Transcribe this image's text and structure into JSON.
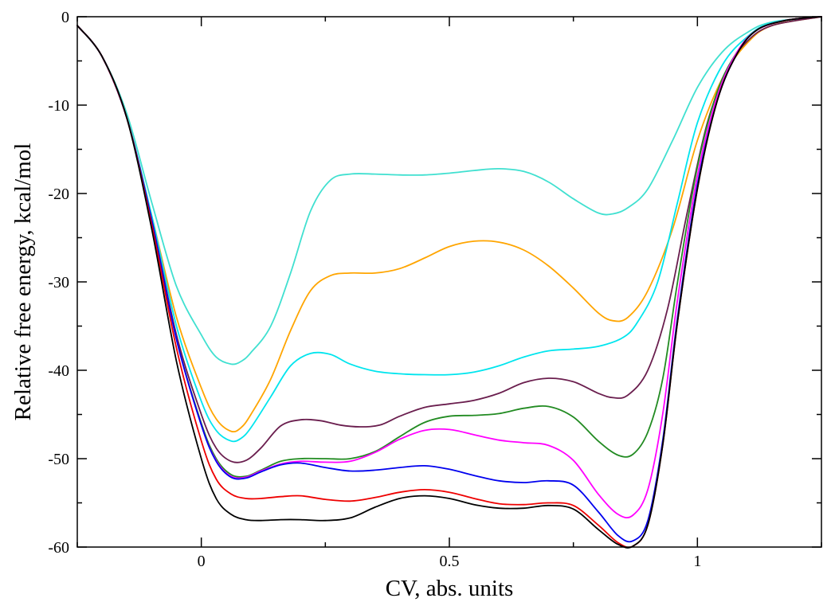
{
  "chart_data": {
    "type": "line",
    "title": "",
    "xlabel": "CV, abs. units",
    "ylabel": "Relative free energy, kcal/mol",
    "xlim": [
      -0.25,
      1.25
    ],
    "ylim": [
      -60,
      0
    ],
    "xticks": [
      0,
      0.5,
      1
    ],
    "xtick_labels": [
      "0",
      "0.5",
      "1"
    ],
    "yticks": [
      0,
      -10,
      -20,
      -30,
      -40,
      -50,
      -60
    ],
    "ytick_labels": [
      "0",
      "-10",
      "-20",
      "-30",
      "-40",
      "-50",
      "-60"
    ],
    "grid": false,
    "legend": "none",
    "series": [
      {
        "color": "#40e0d0",
        "points": [
          [
            -0.25,
            -1
          ],
          [
            -0.2,
            -4.5
          ],
          [
            -0.15,
            -11
          ],
          [
            -0.1,
            -21
          ],
          [
            -0.05,
            -30.5
          ],
          [
            0,
            -36
          ],
          [
            0.03,
            -38.5
          ],
          [
            0.06,
            -39.3
          ],
          [
            0.08,
            -39
          ],
          [
            0.1,
            -38
          ],
          [
            0.14,
            -35
          ],
          [
            0.18,
            -29
          ],
          [
            0.22,
            -22
          ],
          [
            0.26,
            -18.5
          ],
          [
            0.3,
            -17.8
          ],
          [
            0.35,
            -17.8
          ],
          [
            0.4,
            -17.9
          ],
          [
            0.45,
            -17.9
          ],
          [
            0.5,
            -17.7
          ],
          [
            0.55,
            -17.4
          ],
          [
            0.6,
            -17.2
          ],
          [
            0.65,
            -17.5
          ],
          [
            0.7,
            -18.7
          ],
          [
            0.75,
            -20.6
          ],
          [
            0.8,
            -22.2
          ],
          [
            0.83,
            -22.3
          ],
          [
            0.86,
            -21.6
          ],
          [
            0.9,
            -19.5
          ],
          [
            0.95,
            -14
          ],
          [
            1,
            -8
          ],
          [
            1.05,
            -4
          ],
          [
            1.1,
            -1.8
          ],
          [
            1.15,
            -0.6
          ],
          [
            1.25,
            0
          ]
        ]
      },
      {
        "color": "#ffa500",
        "points": [
          [
            -0.25,
            -1
          ],
          [
            -0.2,
            -4.5
          ],
          [
            -0.15,
            -11.5
          ],
          [
            -0.1,
            -22.5
          ],
          [
            -0.05,
            -34
          ],
          [
            0,
            -42
          ],
          [
            0.03,
            -45.5
          ],
          [
            0.06,
            -46.9
          ],
          [
            0.08,
            -46.5
          ],
          [
            0.1,
            -45
          ],
          [
            0.14,
            -41
          ],
          [
            0.18,
            -35.5
          ],
          [
            0.22,
            -31
          ],
          [
            0.26,
            -29.3
          ],
          [
            0.3,
            -29
          ],
          [
            0.35,
            -29
          ],
          [
            0.4,
            -28.5
          ],
          [
            0.45,
            -27.3
          ],
          [
            0.5,
            -26
          ],
          [
            0.55,
            -25.4
          ],
          [
            0.6,
            -25.5
          ],
          [
            0.65,
            -26.4
          ],
          [
            0.7,
            -28.2
          ],
          [
            0.75,
            -30.7
          ],
          [
            0.8,
            -33.5
          ],
          [
            0.83,
            -34.4
          ],
          [
            0.86,
            -34
          ],
          [
            0.9,
            -31
          ],
          [
            0.95,
            -24
          ],
          [
            1,
            -14
          ],
          [
            1.05,
            -7
          ],
          [
            1.1,
            -3
          ],
          [
            1.15,
            -1
          ],
          [
            1.25,
            0
          ]
        ]
      },
      {
        "color": "#00e5ee",
        "points": [
          [
            -0.25,
            -1
          ],
          [
            -0.2,
            -4.5
          ],
          [
            -0.15,
            -11.5
          ],
          [
            -0.1,
            -22.5
          ],
          [
            -0.05,
            -35
          ],
          [
            0,
            -43.5
          ],
          [
            0.03,
            -46.8
          ],
          [
            0.06,
            -48
          ],
          [
            0.08,
            -47.7
          ],
          [
            0.1,
            -46.5
          ],
          [
            0.14,
            -43
          ],
          [
            0.18,
            -39.5
          ],
          [
            0.22,
            -38.1
          ],
          [
            0.26,
            -38.2
          ],
          [
            0.3,
            -39.3
          ],
          [
            0.35,
            -40.1
          ],
          [
            0.4,
            -40.4
          ],
          [
            0.45,
            -40.5
          ],
          [
            0.5,
            -40.5
          ],
          [
            0.55,
            -40.2
          ],
          [
            0.6,
            -39.5
          ],
          [
            0.65,
            -38.5
          ],
          [
            0.7,
            -37.8
          ],
          [
            0.75,
            -37.6
          ],
          [
            0.8,
            -37.3
          ],
          [
            0.85,
            -36.3
          ],
          [
            0.88,
            -34.5
          ],
          [
            0.92,
            -30
          ],
          [
            0.96,
            -21
          ],
          [
            1,
            -12
          ],
          [
            1.05,
            -5.5
          ],
          [
            1.1,
            -2.3
          ],
          [
            1.15,
            -0.7
          ],
          [
            1.25,
            0
          ]
        ]
      },
      {
        "color": "#6a1e4e",
        "points": [
          [
            -0.25,
            -1
          ],
          [
            -0.2,
            -4.5
          ],
          [
            -0.15,
            -11.5
          ],
          [
            -0.1,
            -23
          ],
          [
            -0.05,
            -36
          ],
          [
            0,
            -45
          ],
          [
            0.03,
            -48.8
          ],
          [
            0.06,
            -50.3
          ],
          [
            0.09,
            -50.2
          ],
          [
            0.12,
            -48.8
          ],
          [
            0.16,
            -46.3
          ],
          [
            0.2,
            -45.6
          ],
          [
            0.24,
            -45.7
          ],
          [
            0.28,
            -46.2
          ],
          [
            0.32,
            -46.4
          ],
          [
            0.36,
            -46.2
          ],
          [
            0.4,
            -45.2
          ],
          [
            0.45,
            -44.2
          ],
          [
            0.5,
            -43.8
          ],
          [
            0.55,
            -43.4
          ],
          [
            0.6,
            -42.6
          ],
          [
            0.65,
            -41.4
          ],
          [
            0.7,
            -40.9
          ],
          [
            0.75,
            -41.3
          ],
          [
            0.8,
            -42.6
          ],
          [
            0.83,
            -43.1
          ],
          [
            0.86,
            -42.8
          ],
          [
            0.9,
            -40
          ],
          [
            0.94,
            -33
          ],
          [
            0.98,
            -22
          ],
          [
            1.02,
            -12
          ],
          [
            1.06,
            -6
          ],
          [
            1.1,
            -2.8
          ],
          [
            1.15,
            -1
          ],
          [
            1.25,
            0
          ]
        ]
      },
      {
        "color": "#228b22",
        "points": [
          [
            -0.25,
            -1
          ],
          [
            -0.2,
            -4.5
          ],
          [
            -0.15,
            -11.5
          ],
          [
            -0.1,
            -23
          ],
          [
            -0.05,
            -36.5
          ],
          [
            0,
            -46
          ],
          [
            0.03,
            -50
          ],
          [
            0.06,
            -51.8
          ],
          [
            0.09,
            -52
          ],
          [
            0.12,
            -51.3
          ],
          [
            0.16,
            -50.3
          ],
          [
            0.2,
            -50
          ],
          [
            0.25,
            -50
          ],
          [
            0.3,
            -50
          ],
          [
            0.35,
            -49.2
          ],
          [
            0.4,
            -47.5
          ],
          [
            0.45,
            -45.9
          ],
          [
            0.5,
            -45.2
          ],
          [
            0.55,
            -45.1
          ],
          [
            0.6,
            -44.9
          ],
          [
            0.65,
            -44.3
          ],
          [
            0.7,
            -44.1
          ],
          [
            0.75,
            -45.3
          ],
          [
            0.8,
            -48
          ],
          [
            0.84,
            -49.6
          ],
          [
            0.87,
            -49.5
          ],
          [
            0.9,
            -47
          ],
          [
            0.93,
            -41
          ],
          [
            0.96,
            -30
          ],
          [
            1,
            -17
          ],
          [
            1.04,
            -8.5
          ],
          [
            1.08,
            -4
          ],
          [
            1.12,
            -1.5
          ],
          [
            1.18,
            -0.4
          ],
          [
            1.25,
            0
          ]
        ]
      },
      {
        "color": "#ff00ff",
        "points": [
          [
            -0.25,
            -1
          ],
          [
            -0.2,
            -4.5
          ],
          [
            -0.15,
            -11.5
          ],
          [
            -0.1,
            -23
          ],
          [
            -0.05,
            -36.5
          ],
          [
            0,
            -46.2
          ],
          [
            0.03,
            -50.2
          ],
          [
            0.06,
            -52
          ],
          [
            0.09,
            -52.1
          ],
          [
            0.12,
            -51.4
          ],
          [
            0.16,
            -50.6
          ],
          [
            0.2,
            -50.3
          ],
          [
            0.25,
            -50.4
          ],
          [
            0.3,
            -50.3
          ],
          [
            0.35,
            -49.3
          ],
          [
            0.4,
            -47.8
          ],
          [
            0.45,
            -46.8
          ],
          [
            0.5,
            -46.7
          ],
          [
            0.55,
            -47.3
          ],
          [
            0.6,
            -47.9
          ],
          [
            0.65,
            -48.2
          ],
          [
            0.7,
            -48.5
          ],
          [
            0.75,
            -50.2
          ],
          [
            0.8,
            -54
          ],
          [
            0.84,
            -56.3
          ],
          [
            0.87,
            -56.4
          ],
          [
            0.9,
            -53.5
          ],
          [
            0.93,
            -45
          ],
          [
            0.96,
            -32
          ],
          [
            1,
            -18
          ],
          [
            1.04,
            -9
          ],
          [
            1.08,
            -4
          ],
          [
            1.12,
            -1.5
          ],
          [
            1.18,
            -0.4
          ],
          [
            1.25,
            0
          ]
        ]
      },
      {
        "color": "#0000ee",
        "points": [
          [
            -0.25,
            -1
          ],
          [
            -0.2,
            -4.5
          ],
          [
            -0.15,
            -11.5
          ],
          [
            -0.1,
            -23
          ],
          [
            -0.05,
            -36.5
          ],
          [
            0,
            -46.2
          ],
          [
            0.03,
            -50.3
          ],
          [
            0.06,
            -52.1
          ],
          [
            0.09,
            -52.2
          ],
          [
            0.12,
            -51.5
          ],
          [
            0.16,
            -50.7
          ],
          [
            0.2,
            -50.5
          ],
          [
            0.25,
            -51
          ],
          [
            0.3,
            -51.4
          ],
          [
            0.35,
            -51.3
          ],
          [
            0.4,
            -51
          ],
          [
            0.45,
            -50.8
          ],
          [
            0.5,
            -51.2
          ],
          [
            0.55,
            -51.9
          ],
          [
            0.6,
            -52.5
          ],
          [
            0.65,
            -52.7
          ],
          [
            0.7,
            -52.5
          ],
          [
            0.75,
            -53
          ],
          [
            0.8,
            -56
          ],
          [
            0.84,
            -58.7
          ],
          [
            0.87,
            -59.3
          ],
          [
            0.9,
            -57
          ],
          [
            0.93,
            -48
          ],
          [
            0.96,
            -34
          ],
          [
            1,
            -19
          ],
          [
            1.04,
            -9.5
          ],
          [
            1.08,
            -4.2
          ],
          [
            1.12,
            -1.5
          ],
          [
            1.18,
            -0.4
          ],
          [
            1.25,
            0
          ]
        ]
      },
      {
        "color": "#ee0000",
        "points": [
          [
            -0.25,
            -1
          ],
          [
            -0.2,
            -4.5
          ],
          [
            -0.15,
            -11.5
          ],
          [
            -0.1,
            -23.5
          ],
          [
            -0.05,
            -37.5
          ],
          [
            0,
            -48
          ],
          [
            0.03,
            -52.3
          ],
          [
            0.06,
            -54
          ],
          [
            0.09,
            -54.5
          ],
          [
            0.12,
            -54.5
          ],
          [
            0.16,
            -54.3
          ],
          [
            0.2,
            -54.2
          ],
          [
            0.25,
            -54.6
          ],
          [
            0.3,
            -54.8
          ],
          [
            0.35,
            -54.4
          ],
          [
            0.4,
            -53.8
          ],
          [
            0.45,
            -53.5
          ],
          [
            0.5,
            -53.8
          ],
          [
            0.55,
            -54.5
          ],
          [
            0.6,
            -55.1
          ],
          [
            0.65,
            -55.2
          ],
          [
            0.7,
            -55
          ],
          [
            0.75,
            -55.3
          ],
          [
            0.8,
            -57.5
          ],
          [
            0.84,
            -59.5
          ],
          [
            0.87,
            -59.9
          ],
          [
            0.9,
            -57.5
          ],
          [
            0.93,
            -48.5
          ],
          [
            0.96,
            -34.5
          ],
          [
            1,
            -19.5
          ],
          [
            1.04,
            -9.5
          ],
          [
            1.08,
            -4.2
          ],
          [
            1.12,
            -1.5
          ],
          [
            1.18,
            -0.4
          ],
          [
            1.25,
            0
          ]
        ]
      },
      {
        "color": "#000000",
        "points": [
          [
            -0.25,
            -1
          ],
          [
            -0.2,
            -4.5
          ],
          [
            -0.15,
            -11.5
          ],
          [
            -0.1,
            -24
          ],
          [
            -0.05,
            -39
          ],
          [
            0,
            -50
          ],
          [
            0.03,
            -54.5
          ],
          [
            0.06,
            -56.3
          ],
          [
            0.09,
            -56.9
          ],
          [
            0.12,
            -57
          ],
          [
            0.16,
            -56.9
          ],
          [
            0.2,
            -56.9
          ],
          [
            0.25,
            -57
          ],
          [
            0.3,
            -56.7
          ],
          [
            0.35,
            -55.5
          ],
          [
            0.4,
            -54.5
          ],
          [
            0.45,
            -54.2
          ],
          [
            0.5,
            -54.5
          ],
          [
            0.55,
            -55.2
          ],
          [
            0.6,
            -55.6
          ],
          [
            0.65,
            -55.6
          ],
          [
            0.7,
            -55.3
          ],
          [
            0.75,
            -55.7
          ],
          [
            0.8,
            -58
          ],
          [
            0.84,
            -59.7
          ],
          [
            0.87,
            -59.9
          ],
          [
            0.9,
            -57.5
          ],
          [
            0.93,
            -48.5
          ],
          [
            0.96,
            -34.5
          ],
          [
            1,
            -19.5
          ],
          [
            1.04,
            -9.5
          ],
          [
            1.08,
            -4.2
          ],
          [
            1.12,
            -1.5
          ],
          [
            1.18,
            -0.4
          ],
          [
            1.25,
            0
          ]
        ]
      }
    ]
  }
}
